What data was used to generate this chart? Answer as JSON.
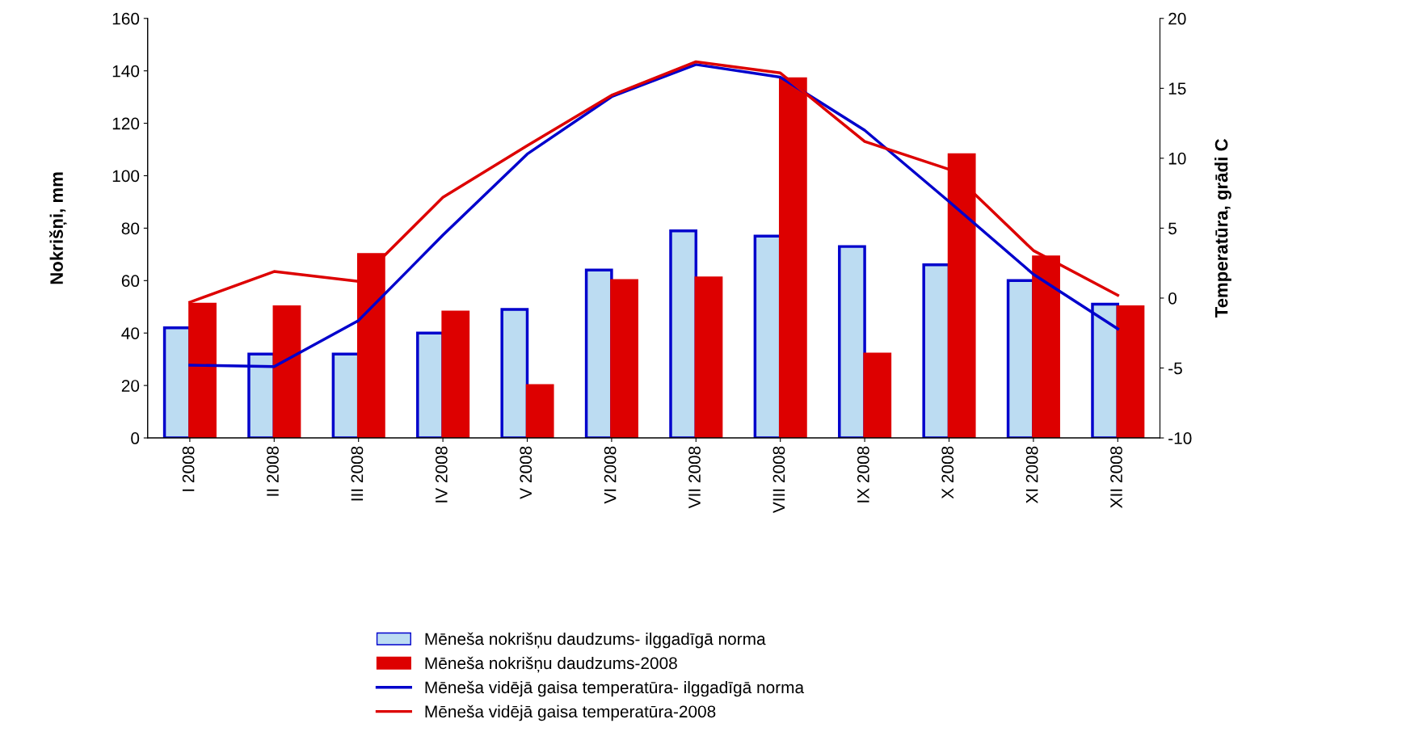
{
  "chart_data": {
    "type": "bar",
    "ylabel": "Nokrišņi, mm",
    "y2label": "Temperatūra, grādi C",
    "categories": [
      "I 2008",
      "II 2008",
      "III 2008",
      "IV 2008",
      "V 2008",
      "VI 2008",
      "VII 2008",
      "VIII 2008",
      "IX 2008",
      "X 2008",
      "XI 2008",
      "XII 2008"
    ],
    "series": [
      {
        "name": "Mēneša nokrišņu daudzums- ilggadīgā norma",
        "color": "#bcdcf2",
        "values": [
          42,
          32,
          32,
          40,
          49,
          64,
          79,
          77,
          73,
          66,
          60,
          51
        ]
      },
      {
        "name": "Mēneša nokrišņu daudzums-2008",
        "color": "#dd0000",
        "values": [
          51,
          50,
          70,
          48,
          20,
          60,
          61,
          137,
          32,
          108,
          69,
          50
        ]
      },
      {
        "name": "Mēneša vidējā gaisa temperatūra- ilggadīgā norma",
        "type": "line",
        "axis": "y2",
        "color": "#0000cc",
        "values": [
          -4.8,
          -4.9,
          -1.6,
          4.5,
          10.3,
          14.4,
          16.7,
          15.8,
          12,
          6.9,
          1.7,
          -2.2
        ]
      },
      {
        "name": "Mēneša vidējā gaisa temperatūra-2008",
        "type": "line",
        "axis": "y2",
        "color": "#dd0000",
        "values": [
          -0.3,
          1.9,
          1.2,
          7.2,
          10.9,
          14.5,
          16.9,
          16.1,
          11.2,
          9.2,
          3.4,
          0.2
        ]
      }
    ],
    "ylim": [
      0,
      160
    ],
    "yticks": [
      0,
      20,
      40,
      60,
      80,
      100,
      120,
      140,
      160
    ],
    "y2lim": [
      -10,
      20
    ],
    "y2ticks": [
      -10,
      -5,
      0,
      5,
      10,
      15,
      20
    ],
    "grid": false,
    "legend": "bottom",
    "marker": "none",
    "line_style": "solid"
  }
}
